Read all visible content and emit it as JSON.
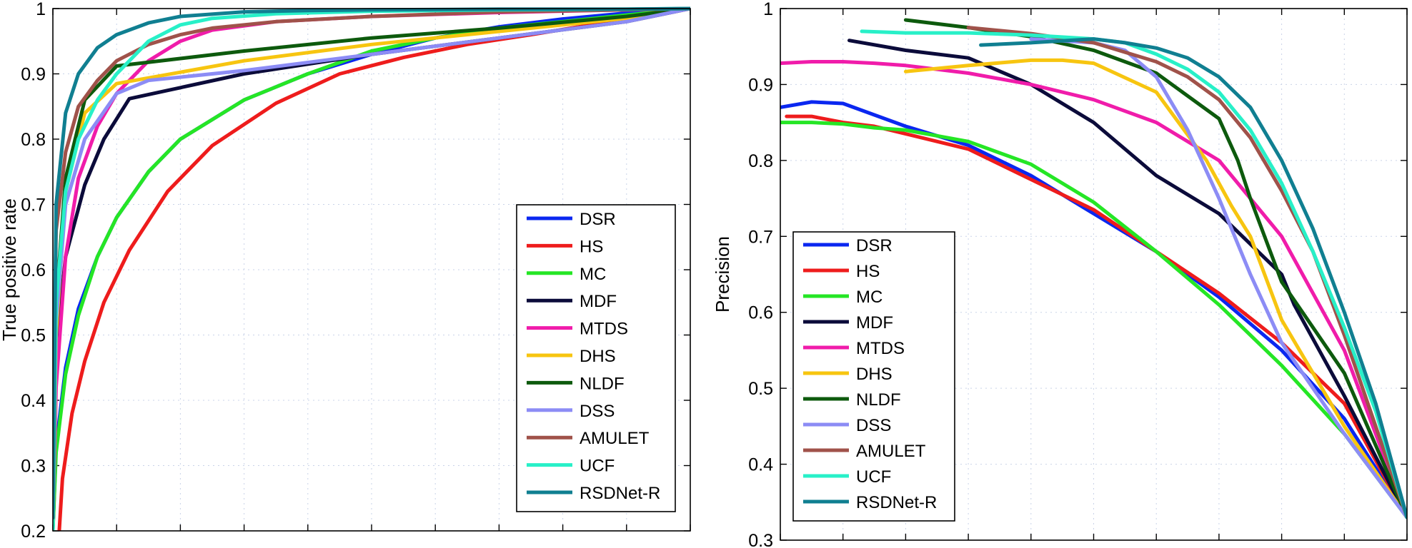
{
  "chart_data": [
    {
      "type": "line",
      "title": "",
      "xlabel": "",
      "ylabel": "True positive rate",
      "xlim": [
        0,
        1
      ],
      "ylim": [
        0.2,
        1
      ],
      "x_ticks": [
        0,
        0.1,
        0.2,
        0.3,
        0.4,
        0.5,
        0.6,
        0.7,
        0.8,
        0.9,
        1
      ],
      "y_ticks": [
        "0.2",
        "0.3",
        "0.4",
        "0.5",
        "0.6",
        "0.7",
        "0.8",
        "0.9",
        "1"
      ],
      "grid": true,
      "legend_position": "bottom-right",
      "series": [
        {
          "name": "DSR",
          "color": "#0a27f0",
          "x": [
            0,
            0.005,
            0.02,
            0.04,
            0.07,
            0.1,
            0.15,
            0.2,
            0.3,
            0.4,
            0.5,
            0.6,
            0.7,
            0.8,
            0.9,
            1
          ],
          "y": [
            0.2,
            0.33,
            0.45,
            0.54,
            0.62,
            0.68,
            0.75,
            0.8,
            0.86,
            0.9,
            0.93,
            0.955,
            0.972,
            0.984,
            0.993,
            1
          ]
        },
        {
          "name": "HS",
          "color": "#ee1c1c",
          "x": [
            0.01,
            0.015,
            0.03,
            0.05,
            0.08,
            0.12,
            0.18,
            0.25,
            0.35,
            0.45,
            0.55,
            0.65,
            0.75,
            0.85,
            0.95,
            1
          ],
          "y": [
            0.2,
            0.28,
            0.38,
            0.46,
            0.55,
            0.63,
            0.72,
            0.79,
            0.855,
            0.9,
            0.925,
            0.945,
            0.96,
            0.976,
            0.99,
            1
          ]
        },
        {
          "name": "MC",
          "color": "#25e625",
          "x": [
            0,
            0.005,
            0.02,
            0.04,
            0.07,
            0.1,
            0.15,
            0.2,
            0.3,
            0.4,
            0.5,
            0.6,
            0.7,
            0.8,
            0.9,
            1
          ],
          "y": [
            0.2,
            0.32,
            0.44,
            0.53,
            0.62,
            0.68,
            0.75,
            0.8,
            0.86,
            0.9,
            0.935,
            0.955,
            0.97,
            0.98,
            0.99,
            1
          ]
        },
        {
          "name": "MDF",
          "color": "#0b0b3a",
          "x": [
            0,
            0.005,
            0.02,
            0.05,
            0.08,
            0.12,
            0.3,
            0.5,
            0.7,
            0.9,
            1
          ],
          "y": [
            0.24,
            0.48,
            0.62,
            0.73,
            0.8,
            0.862,
            0.9,
            0.93,
            0.955,
            0.98,
            1
          ]
        },
        {
          "name": "MTDS",
          "color": "#f01caa",
          "x": [
            0,
            0.005,
            0.02,
            0.04,
            0.07,
            0.1,
            0.15,
            0.2,
            0.25,
            0.35,
            0.5,
            0.7,
            0.9,
            1
          ],
          "y": [
            0.21,
            0.42,
            0.62,
            0.74,
            0.82,
            0.87,
            0.92,
            0.95,
            0.967,
            0.98,
            0.988,
            0.994,
            0.998,
            1
          ]
        },
        {
          "name": "DHS",
          "color": "#f7c510",
          "x": [
            0,
            0.005,
            0.02,
            0.05,
            0.1,
            0.3,
            0.5,
            0.7,
            0.9,
            1
          ],
          "y": [
            0.21,
            0.5,
            0.72,
            0.84,
            0.885,
            0.92,
            0.945,
            0.965,
            0.985,
            1
          ]
        },
        {
          "name": "NLDF",
          "color": "#0d5a0d",
          "x": [
            0,
            0.005,
            0.02,
            0.05,
            0.1,
            0.3,
            0.5,
            0.7,
            0.9,
            1
          ],
          "y": [
            0.25,
            0.55,
            0.74,
            0.86,
            0.912,
            0.935,
            0.955,
            0.97,
            0.988,
            1
          ]
        },
        {
          "name": "DSS",
          "color": "#8c8cf5",
          "x": [
            0,
            0.005,
            0.02,
            0.05,
            0.1,
            0.15,
            0.3,
            0.5,
            0.7,
            0.9,
            1
          ],
          "y": [
            0.22,
            0.52,
            0.7,
            0.8,
            0.87,
            0.89,
            0.905,
            0.93,
            0.955,
            0.98,
            1
          ]
        },
        {
          "name": "AMULET",
          "color": "#a0524a",
          "x": [
            0,
            0.005,
            0.02,
            0.04,
            0.07,
            0.1,
            0.15,
            0.2,
            0.25,
            0.35,
            0.5,
            0.7,
            0.9,
            1
          ],
          "y": [
            0.34,
            0.66,
            0.78,
            0.85,
            0.89,
            0.92,
            0.945,
            0.96,
            0.97,
            0.98,
            0.988,
            0.995,
            0.998,
            1
          ]
        },
        {
          "name": "UCF",
          "color": "#28f0c8",
          "x": [
            0,
            0.005,
            0.02,
            0.04,
            0.07,
            0.1,
            0.15,
            0.2,
            0.25,
            0.35,
            0.5,
            0.7,
            0.9,
            1
          ],
          "y": [
            0.2,
            0.55,
            0.72,
            0.8,
            0.86,
            0.9,
            0.95,
            0.975,
            0.985,
            0.992,
            0.996,
            0.998,
            0.999,
            1
          ]
        },
        {
          "name": "RSDNet-R",
          "color": "#107f91",
          "x": [
            0,
            0.005,
            0.02,
            0.04,
            0.07,
            0.1,
            0.15,
            0.2,
            0.3,
            0.4,
            0.5,
            0.7,
            0.9,
            1
          ],
          "y": [
            0.22,
            0.7,
            0.84,
            0.9,
            0.94,
            0.96,
            0.978,
            0.988,
            0.995,
            0.997,
            0.998,
            0.999,
            0.999,
            1
          ]
        }
      ]
    },
    {
      "type": "line",
      "title": "",
      "xlabel": "",
      "ylabel": "Precision",
      "xlim": [
        0,
        1
      ],
      "ylim": [
        0.3,
        1
      ],
      "x_ticks": [
        0,
        0.1,
        0.2,
        0.3,
        0.4,
        0.5,
        0.6,
        0.7,
        0.8,
        0.9,
        1
      ],
      "y_ticks": [
        "0.3",
        "0.4",
        "0.5",
        "0.6",
        "0.7",
        "0.8",
        "0.9",
        "1"
      ],
      "grid": true,
      "legend_position": "bottom-left",
      "series": [
        {
          "name": "DSR",
          "color": "#0a27f0",
          "x": [
            0,
            0.05,
            0.1,
            0.15,
            0.2,
            0.3,
            0.4,
            0.5,
            0.6,
            0.7,
            0.8,
            0.9,
            1
          ],
          "y": [
            0.87,
            0.877,
            0.875,
            0.86,
            0.845,
            0.82,
            0.78,
            0.73,
            0.68,
            0.62,
            0.55,
            0.46,
            0.33
          ]
        },
        {
          "name": "HS",
          "color": "#ee1c1c",
          "x": [
            0.01,
            0.05,
            0.1,
            0.15,
            0.2,
            0.3,
            0.4,
            0.5,
            0.6,
            0.7,
            0.8,
            0.9,
            1
          ],
          "y": [
            0.858,
            0.858,
            0.85,
            0.845,
            0.835,
            0.815,
            0.775,
            0.735,
            0.68,
            0.625,
            0.56,
            0.48,
            0.33
          ]
        },
        {
          "name": "MC",
          "color": "#25e625",
          "x": [
            0,
            0.05,
            0.1,
            0.15,
            0.2,
            0.3,
            0.4,
            0.5,
            0.6,
            0.7,
            0.8,
            0.9,
            1
          ],
          "y": [
            0.85,
            0.85,
            0.848,
            0.843,
            0.84,
            0.825,
            0.795,
            0.745,
            0.68,
            0.61,
            0.53,
            0.44,
            0.33
          ]
        },
        {
          "name": "MDF",
          "color": "#0b0b3a",
          "x": [
            0.11,
            0.2,
            0.3,
            0.4,
            0.5,
            0.6,
            0.7,
            0.8,
            0.82,
            0.9,
            1
          ],
          "y": [
            0.958,
            0.945,
            0.935,
            0.9,
            0.85,
            0.78,
            0.73,
            0.65,
            0.61,
            0.49,
            0.33
          ]
        },
        {
          "name": "MTDS",
          "color": "#f01caa",
          "x": [
            0,
            0.05,
            0.1,
            0.15,
            0.2,
            0.3,
            0.4,
            0.5,
            0.6,
            0.7,
            0.75,
            0.8,
            0.9,
            1
          ],
          "y": [
            0.928,
            0.93,
            0.93,
            0.928,
            0.925,
            0.915,
            0.9,
            0.88,
            0.85,
            0.8,
            0.75,
            0.7,
            0.55,
            0.33
          ]
        },
        {
          "name": "DHS",
          "color": "#f7c510",
          "x": [
            0.2,
            0.3,
            0.4,
            0.45,
            0.5,
            0.6,
            0.68,
            0.72,
            0.75,
            0.8,
            0.9,
            1
          ],
          "y": [
            0.917,
            0.925,
            0.932,
            0.932,
            0.928,
            0.89,
            0.8,
            0.74,
            0.7,
            0.59,
            0.45,
            0.33
          ]
        },
        {
          "name": "NLDF",
          "color": "#0d5a0d",
          "x": [
            0.2,
            0.3,
            0.4,
            0.5,
            0.6,
            0.7,
            0.73,
            0.75,
            0.8,
            0.9,
            1
          ],
          "y": [
            0.985,
            0.975,
            0.963,
            0.945,
            0.915,
            0.855,
            0.8,
            0.75,
            0.64,
            0.52,
            0.33
          ]
        },
        {
          "name": "DSS",
          "color": "#8c8cf5",
          "x": [
            0.4,
            0.5,
            0.55,
            0.6,
            0.65,
            0.7,
            0.75,
            0.8,
            0.9,
            1
          ],
          "y": [
            0.96,
            0.955,
            0.945,
            0.91,
            0.84,
            0.75,
            0.65,
            0.56,
            0.44,
            0.33
          ]
        },
        {
          "name": "AMULET",
          "color": "#a0524a",
          "x": [
            0.3,
            0.4,
            0.5,
            0.6,
            0.65,
            0.7,
            0.75,
            0.8,
            0.85,
            0.9,
            0.95,
            1
          ],
          "y": [
            0.975,
            0.967,
            0.955,
            0.93,
            0.91,
            0.88,
            0.83,
            0.76,
            0.68,
            0.57,
            0.45,
            0.33
          ]
        },
        {
          "name": "UCF",
          "color": "#28f0c8",
          "x": [
            0.13,
            0.2,
            0.3,
            0.4,
            0.5,
            0.55,
            0.6,
            0.65,
            0.7,
            0.75,
            0.8,
            0.85,
            0.9,
            0.95,
            1
          ],
          "y": [
            0.97,
            0.968,
            0.968,
            0.965,
            0.96,
            0.955,
            0.94,
            0.92,
            0.89,
            0.84,
            0.77,
            0.68,
            0.58,
            0.47,
            0.33
          ]
        },
        {
          "name": "RSDNet-R",
          "color": "#107f91",
          "x": [
            0.32,
            0.4,
            0.5,
            0.55,
            0.6,
            0.65,
            0.7,
            0.75,
            0.8,
            0.85,
            0.9,
            0.95,
            1
          ],
          "y": [
            0.952,
            0.955,
            0.96,
            0.955,
            0.948,
            0.935,
            0.91,
            0.87,
            0.8,
            0.71,
            0.6,
            0.48,
            0.33
          ]
        }
      ]
    }
  ]
}
